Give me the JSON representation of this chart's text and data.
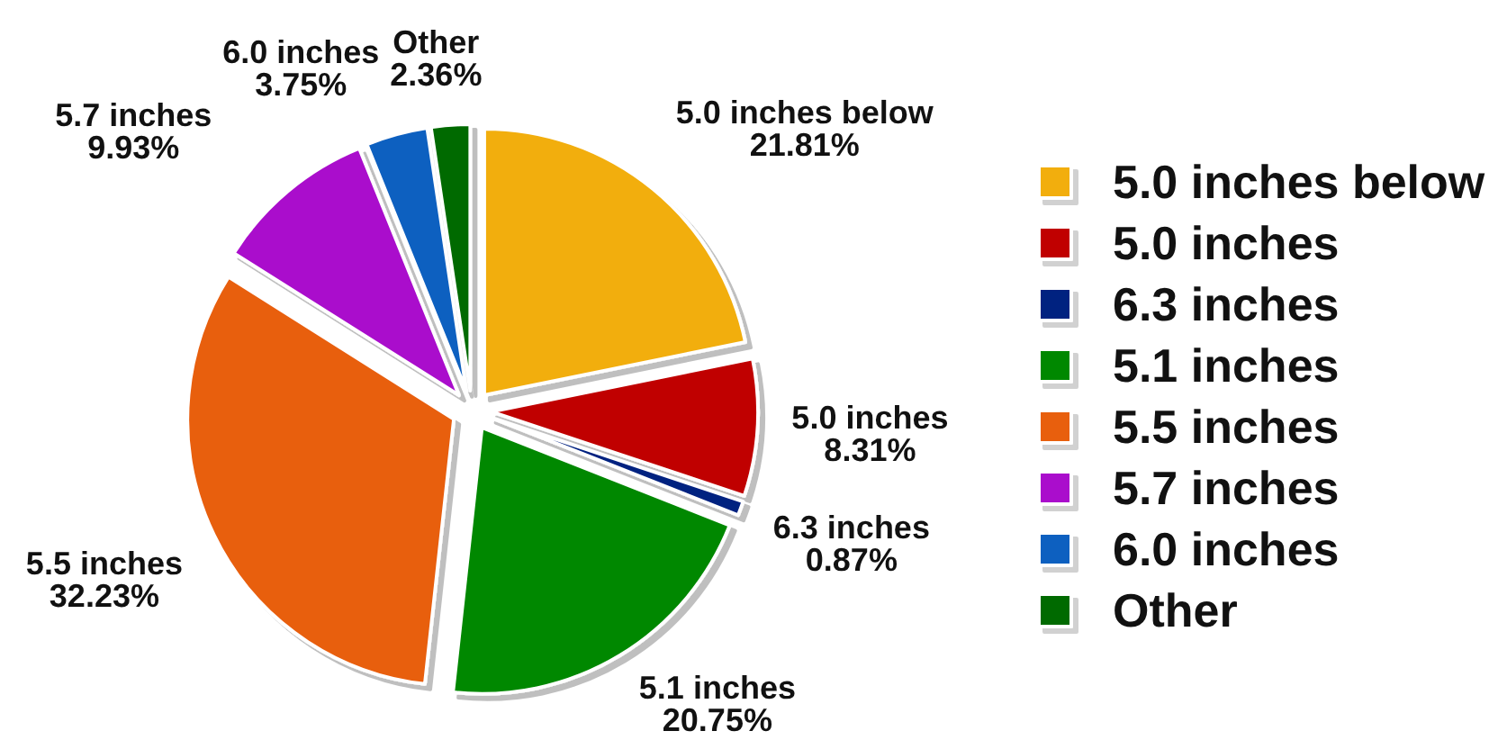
{
  "chart_data": {
    "type": "pie",
    "categories": [
      "5.0 inches below",
      "5.0 inches",
      "6.3 inches",
      "5.1 inches",
      "5.5 inches",
      "5.7 inches",
      "6.0 inches",
      "Other"
    ],
    "values": [
      21.81,
      8.31,
      0.87,
      20.75,
      32.23,
      9.93,
      3.75,
      2.36
    ],
    "value_labels": [
      "21.81%",
      "8.31%",
      "0.87%",
      "20.75%",
      "32.23%",
      "9.93%",
      "3.75%",
      "2.36%"
    ],
    "colors": [
      "#f2ae10",
      "#c00000",
      "#002080",
      "#008800",
      "#e85e10",
      "#aa10cc",
      "#1060c0",
      "#006a00"
    ],
    "legend": "right"
  }
}
